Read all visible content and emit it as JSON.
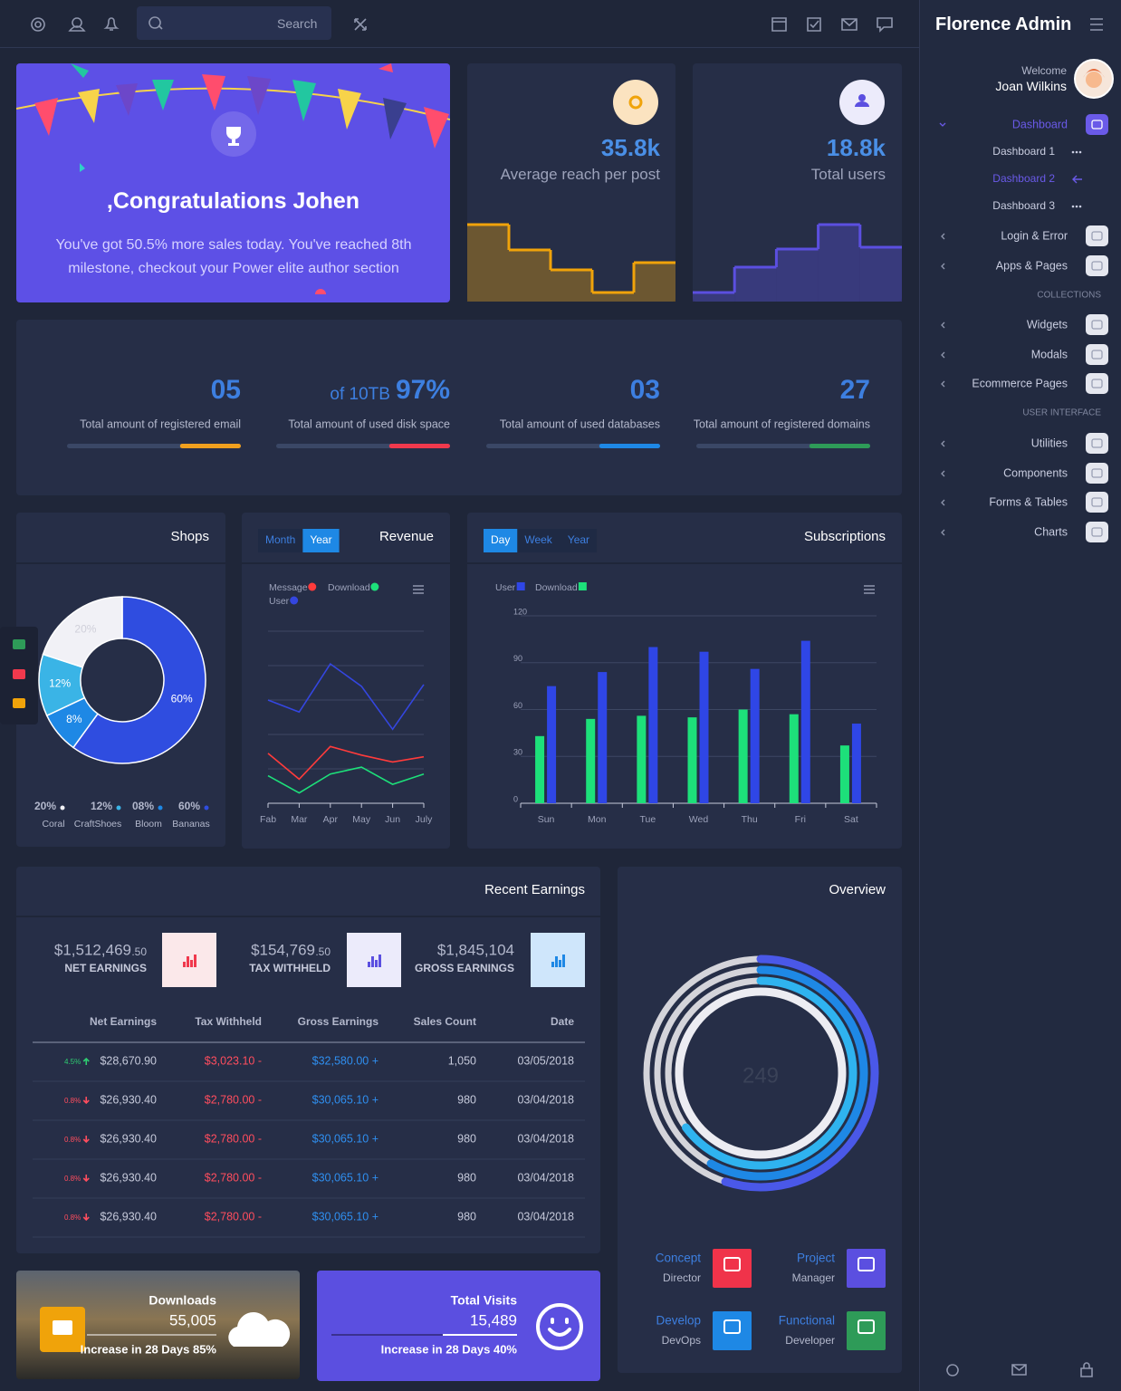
{
  "topbar": {
    "search_placeholder": "Search"
  },
  "sidebar": {
    "brand": "Florence Admin",
    "welcome": "Welcome",
    "user": "Joan Wilkins",
    "menu": [
      {
        "label": "Dashboard",
        "kind": "group",
        "active": true,
        "open": true
      },
      {
        "label": "Dashboard 1",
        "kind": "sub"
      },
      {
        "label": "Dashboard 2",
        "kind": "sub",
        "active": true
      },
      {
        "label": "Dashboard 3",
        "kind": "sub"
      },
      {
        "label": "Login & Error",
        "kind": "group"
      },
      {
        "label": "Apps & Pages",
        "kind": "group"
      },
      {
        "label": "COLLECTIONS",
        "kind": "header"
      },
      {
        "label": "Widgets",
        "kind": "group"
      },
      {
        "label": "Modals",
        "kind": "group"
      },
      {
        "label": "Ecommerce Pages",
        "kind": "group"
      },
      {
        "label": "USER INTERFACE",
        "kind": "header"
      },
      {
        "label": "Utilities",
        "kind": "group"
      },
      {
        "label": "Components",
        "kind": "group"
      },
      {
        "label": "Forms & Tables",
        "kind": "group"
      },
      {
        "label": "Charts",
        "kind": "group"
      }
    ]
  },
  "congrats": {
    "title": ",Congratulations Johen",
    "text": "You've got 50.5% more sales today. You've reached 8th milestone, checkout your Power elite author section"
  },
  "stats": [
    {
      "value": "35.8k",
      "label": "Average reach per post"
    },
    {
      "value": "18.8k",
      "label": "Total users"
    }
  ],
  "usage": [
    {
      "value": "05",
      "label": "Total amount of registered email",
      "progress": 35,
      "color": "#f0a01e"
    },
    {
      "prefix": "of 10TB",
      "value": "97%",
      "label": "Total amount of used disk space",
      "progress": 35,
      "color": "#f0394d"
    },
    {
      "value": "03",
      "label": "Total amount of used databases",
      "progress": 35,
      "color": "#1e88e5"
    },
    {
      "value": "27",
      "label": "Total amount of registered domains",
      "progress": 35,
      "color": "#2e9b58"
    }
  ],
  "chart_data": [
    {
      "type": "step",
      "values": [
        85,
        57,
        35,
        10,
        43
      ],
      "ylim": [
        0,
        100
      ],
      "color": "#f0a30a"
    },
    {
      "type": "step",
      "values": [
        10,
        38,
        58,
        85,
        60
      ],
      "ylim": [
        0,
        100
      ],
      "color": "#5b4fe0"
    },
    {
      "type": "pie",
      "title": "Shops",
      "categories": [
        "Coral",
        "CraftShoes",
        "Bloom",
        "Bananas"
      ],
      "values": [
        20,
        12,
        8,
        60
      ],
      "value_labels": [
        "20%",
        "12%",
        "8%",
        "60%"
      ],
      "legend_labels": [
        "20%",
        "12%",
        "08%",
        "60%"
      ],
      "colors": [
        "#f1f1f6",
        "#3ab4e6",
        "#1e88e5",
        "#2f4de0"
      ]
    },
    {
      "type": "line",
      "title": "Revenue",
      "buttons": [
        "Month",
        "Year"
      ],
      "active_button": 1,
      "categories": [
        "Fab",
        "Mar",
        "Apr",
        "May",
        "Jun",
        "July"
      ],
      "series": [
        {
          "name": "Message",
          "color": "#ff3b3b",
          "values": [
            29,
            14,
            33,
            28,
            24,
            27
          ]
        },
        {
          "name": "Download",
          "color": "#1de07a",
          "values": [
            16,
            6,
            17,
            21,
            11,
            17
          ]
        },
        {
          "name": "User",
          "color": "#3446e0",
          "values": [
            60,
            53,
            81,
            68,
            43,
            69
          ]
        }
      ],
      "ylim": [
        0,
        100
      ],
      "grid": true
    },
    {
      "type": "bar",
      "title": "Subscriptions",
      "buttons": [
        "Day",
        "Week",
        "Year"
      ],
      "active_button": 0,
      "categories": [
        "Sun",
        "Mon",
        "Tue",
        "Wed",
        "Thu",
        "Fri",
        "Sat"
      ],
      "series": [
        {
          "name": "User",
          "color": "#2f46e6",
          "values": [
            75,
            84,
            100,
            97,
            86,
            104,
            51
          ]
        },
        {
          "name": "Download",
          "color": "#1de07a",
          "values": [
            43,
            54,
            56,
            55,
            60,
            57,
            37
          ]
        }
      ],
      "ylim": [
        0,
        120
      ],
      "yticks": [
        0,
        30,
        60,
        90,
        120
      ],
      "grid": true
    },
    {
      "type": "radial",
      "title": "Overview",
      "center_label": "249",
      "values": [
        55,
        58,
        65,
        100
      ],
      "colors": [
        "#4a58e8",
        "#1e88e5",
        "#2fb3ef",
        "#ececf2"
      ]
    }
  ],
  "earnings": {
    "title": "Recent Earnings",
    "summary": [
      {
        "amount": "$1,512,469",
        "cents": ".50",
        "label": "NET EARNINGS",
        "color": "#f0394d",
        "bg": "#fbe8ea"
      },
      {
        "amount": "$154,769",
        "cents": ".50",
        "label": "TAX WITHHELD",
        "color": "#5b4fe0",
        "bg": "#ecebfb"
      },
      {
        "amount": "$1,845,104",
        "label": "GROSS EARNINGS",
        "color": "#1e88e5",
        "bg": "#cfe6fb"
      }
    ],
    "columns": [
      "Net Earnings",
      "Tax Withheld",
      "Gross Earnings",
      "Sales Count",
      "Date"
    ],
    "rows": [
      {
        "change": "4.5%",
        "direction": "up",
        "net": "$28,670.90",
        "tax": "$3,023.10 -",
        "gross": "$32,580.00 +",
        "count": "1,050",
        "date": "03/05/2018"
      },
      {
        "change": "0.8%",
        "direction": "down",
        "net": "$26,930.40",
        "tax": "$2,780.00 -",
        "gross": "$30,065.10 +",
        "count": "980",
        "date": "03/04/2018"
      },
      {
        "change": "0.8%",
        "direction": "down",
        "net": "$26,930.40",
        "tax": "$2,780.00 -",
        "gross": "$30,065.10 +",
        "count": "980",
        "date": "03/04/2018"
      },
      {
        "change": "0.8%",
        "direction": "down",
        "net": "$26,930.40",
        "tax": "$2,780.00 -",
        "gross": "$30,065.10 +",
        "count": "980",
        "date": "03/04/2018"
      },
      {
        "change": "0.8%",
        "direction": "down",
        "net": "$26,930.40",
        "tax": "$2,780.00 -",
        "gross": "$30,065.10 +",
        "count": "980",
        "date": "03/04/2018"
      }
    ]
  },
  "team": [
    {
      "name": "Concept",
      "role": "Director",
      "color": "#f0334a"
    },
    {
      "name": "Project",
      "role": "Manager",
      "color": "#5b4fe0"
    },
    {
      "name": "Develop",
      "role": "DevOps",
      "color": "#1e88e5"
    },
    {
      "name": "Functional",
      "role": "Developer",
      "color": "#2e9b58"
    }
  ],
  "downloads": {
    "title": "Downloads",
    "value": "55,005",
    "note": "Increase in 28 Days 85%"
  },
  "visits": {
    "title": "Total Visits",
    "value": "15,489",
    "note": "Increase in 28 Days 40%"
  }
}
